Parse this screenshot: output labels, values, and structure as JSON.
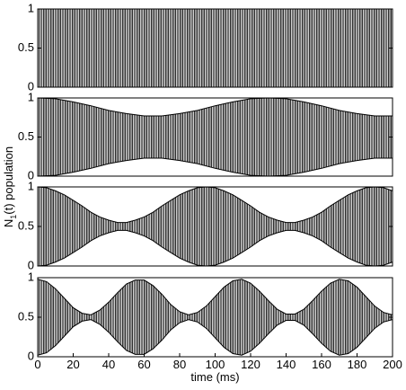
{
  "chart_data": [
    {
      "type": "line",
      "x": [
        0,
        200
      ],
      "series": [
        {
          "color": "#000000",
          "values": [
            1,
            1
          ]
        },
        {
          "color": "#000000",
          "values": [
            0,
            0
          ]
        }
      ],
      "xlim": [
        0,
        200
      ],
      "ylim": [
        0,
        1
      ],
      "yticks": [
        0,
        0.5,
        1
      ]
    },
    {
      "type": "line",
      "x": [
        0,
        10,
        20,
        30,
        40,
        50,
        60,
        70,
        80,
        90,
        100,
        110,
        120,
        130,
        140,
        150,
        160,
        170,
        180,
        190,
        200
      ],
      "series": [
        {
          "color": "#000000",
          "values": [
            1,
            0.99,
            0.95,
            0.9,
            0.84,
            0.8,
            0.77,
            0.77,
            0.8,
            0.84,
            0.9,
            0.95,
            0.99,
            1,
            0.99,
            0.95,
            0.9,
            0.84,
            0.8,
            0.77,
            0.77
          ]
        },
        {
          "color": "#000000",
          "values": [
            0,
            0.01,
            0.05,
            0.1,
            0.16,
            0.2,
            0.23,
            0.23,
            0.2,
            0.16,
            0.1,
            0.05,
            0.01,
            0,
            0.01,
            0.05,
            0.1,
            0.16,
            0.2,
            0.23,
            0.23
          ]
        }
      ],
      "xlim": [
        0,
        200
      ],
      "ylim": [
        0,
        1
      ],
      "yticks": [
        0,
        0.5,
        1
      ]
    },
    {
      "type": "line",
      "x": [
        0,
        5,
        10,
        15,
        20,
        25,
        30,
        35,
        40,
        45,
        50,
        55,
        60,
        65,
        70,
        75,
        80,
        85,
        90,
        95,
        100,
        105,
        110,
        115,
        120,
        125,
        130,
        135,
        140,
        145,
        150,
        155,
        160,
        165,
        170,
        175,
        180,
        185,
        190,
        195,
        200
      ],
      "series": [
        {
          "color": "#000000",
          "values": [
            1,
            0.99,
            0.95,
            0.9,
            0.83,
            0.76,
            0.68,
            0.62,
            0.58,
            0.55,
            0.55,
            0.58,
            0.62,
            0.68,
            0.76,
            0.83,
            0.9,
            0.95,
            0.99,
            1,
            0.99,
            0.95,
            0.9,
            0.83,
            0.76,
            0.68,
            0.62,
            0.58,
            0.55,
            0.55,
            0.58,
            0.62,
            0.68,
            0.76,
            0.83,
            0.9,
            0.95,
            0.99,
            1,
            0.99,
            0.95
          ]
        },
        {
          "color": "#000000",
          "values": [
            0,
            0.01,
            0.05,
            0.1,
            0.17,
            0.24,
            0.32,
            0.38,
            0.42,
            0.45,
            0.45,
            0.42,
            0.38,
            0.32,
            0.24,
            0.17,
            0.1,
            0.05,
            0.01,
            0,
            0.01,
            0.05,
            0.1,
            0.17,
            0.24,
            0.32,
            0.38,
            0.42,
            0.45,
            0.45,
            0.42,
            0.38,
            0.32,
            0.24,
            0.17,
            0.1,
            0.05,
            0.01,
            0,
            0.01,
            0.05
          ]
        }
      ],
      "xlim": [
        0,
        200
      ],
      "ylim": [
        0,
        1
      ],
      "yticks": [
        0,
        0.5,
        1
      ],
      "ylabel": [
        "N",
        "1",
        "(t)  population"
      ]
    },
    {
      "type": "line",
      "x": [
        0,
        5,
        10,
        15,
        20,
        25,
        30,
        35,
        40,
        45,
        50,
        55,
        60,
        65,
        70,
        75,
        80,
        85,
        90,
        95,
        100,
        105,
        110,
        115,
        120,
        125,
        130,
        135,
        140,
        145,
        150,
        155,
        160,
        165,
        170,
        175,
        180,
        185,
        190,
        195,
        200
      ],
      "series": [
        {
          "color": "#000000",
          "values": [
            0.98,
            0.95,
            0.86,
            0.74,
            0.62,
            0.55,
            0.53,
            0.59,
            0.69,
            0.81,
            0.92,
            0.97,
            0.97,
            0.9,
            0.79,
            0.66,
            0.57,
            0.53,
            0.56,
            0.64,
            0.76,
            0.88,
            0.96,
            0.98,
            0.93,
            0.83,
            0.71,
            0.6,
            0.54,
            0.54,
            0.6,
            0.71,
            0.83,
            0.93,
            0.98,
            0.96,
            0.88,
            0.76,
            0.64,
            0.56,
            0.53
          ]
        },
        {
          "color": "#000000",
          "values": [
            0.02,
            0.05,
            0.14,
            0.26,
            0.38,
            0.45,
            0.47,
            0.41,
            0.31,
            0.19,
            0.08,
            0.03,
            0.03,
            0.1,
            0.21,
            0.34,
            0.43,
            0.47,
            0.44,
            0.36,
            0.24,
            0.12,
            0.04,
            0.02,
            0.07,
            0.17,
            0.29,
            0.4,
            0.46,
            0.46,
            0.4,
            0.29,
            0.17,
            0.07,
            0.02,
            0.04,
            0.12,
            0.24,
            0.36,
            0.44,
            0.47
          ]
        }
      ],
      "xlim": [
        0,
        200
      ],
      "ylim": [
        0,
        1
      ],
      "yticks": [
        0,
        0.5,
        1
      ],
      "xticks": [
        0,
        20,
        40,
        60,
        80,
        100,
        120,
        140,
        160,
        180,
        200
      ],
      "xlabel": "time  (ms)"
    }
  ]
}
